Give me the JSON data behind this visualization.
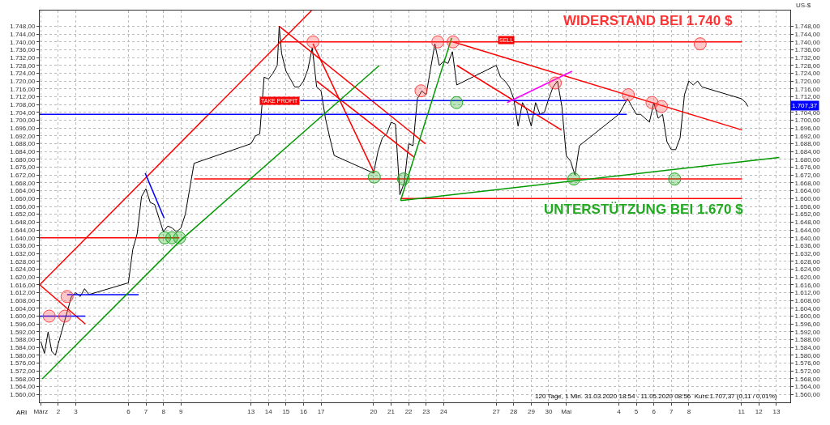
{
  "chart_data": {
    "type": "line",
    "y2label": "US-$",
    "legend": false,
    "grid": true,
    "xlim": [
      "2020-03-31T22:30",
      "2020-05-13T19:00"
    ],
    "ylim": [
      1556,
      1756
    ],
    "y2lim": [
      1556,
      1756
    ],
    "xticks": [
      {
        "value": "2020-04-01",
        "label": "März"
      },
      {
        "value": "2020-04-02",
        "label": "2"
      },
      {
        "value": "2020-04-03",
        "label": "3"
      },
      {
        "value": "2020-04-06",
        "label": "6"
      },
      {
        "value": "2020-04-07",
        "label": "7"
      },
      {
        "value": "2020-04-08",
        "label": "8"
      },
      {
        "value": "2020-04-09",
        "label": "9"
      },
      {
        "value": "2020-04-13",
        "label": "13"
      },
      {
        "value": "2020-04-14",
        "label": "14"
      },
      {
        "value": "2020-04-15",
        "label": "15"
      },
      {
        "value": "2020-04-16",
        "label": "16"
      },
      {
        "value": "2020-04-17",
        "label": "17"
      },
      {
        "value": "2020-04-20",
        "label": "20"
      },
      {
        "value": "2020-04-21",
        "label": "21"
      },
      {
        "value": "2020-04-22",
        "label": "22"
      },
      {
        "value": "2020-04-23",
        "label": "23"
      },
      {
        "value": "2020-04-24",
        "label": "24"
      },
      {
        "value": "2020-04-27",
        "label": "27"
      },
      {
        "value": "2020-04-28",
        "label": "28"
      },
      {
        "value": "2020-04-29",
        "label": "29"
      },
      {
        "value": "2020-04-30",
        "label": "30"
      },
      {
        "value": "2020-05-01",
        "label": "Mai"
      },
      {
        "value": "2020-05-04",
        "label": "4"
      },
      {
        "value": "2020-05-05",
        "label": "5"
      },
      {
        "value": "2020-05-06",
        "label": "6"
      },
      {
        "value": "2020-05-07",
        "label": "7"
      },
      {
        "value": "2020-05-08",
        "label": "8"
      },
      {
        "value": "2020-05-11",
        "label": "11"
      },
      {
        "value": "2020-05-12",
        "label": "12"
      },
      {
        "value": "2020-05-13",
        "label": "13"
      }
    ],
    "yticks": [
      {
        "value": 1560,
        "label": "1.560,00"
      },
      {
        "value": 1564,
        "label": "1.564,00"
      },
      {
        "value": 1568,
        "label": "1.568,00"
      },
      {
        "value": 1572,
        "label": "1.572,00"
      },
      {
        "value": 1576,
        "label": "1.576,00"
      },
      {
        "value": 1580,
        "label": "1.580,00"
      },
      {
        "value": 1584,
        "label": "1.584,00"
      },
      {
        "value": 1588,
        "label": "1.588,00"
      },
      {
        "value": 1592,
        "label": "1.592,00"
      },
      {
        "value": 1596,
        "label": "1.596,00"
      },
      {
        "value": 1600,
        "label": "1.600,00"
      },
      {
        "value": 1604,
        "label": "1.604,00"
      },
      {
        "value": 1608,
        "label": "1.608,00"
      },
      {
        "value": 1612,
        "label": "1.612,00"
      },
      {
        "value": 1616,
        "label": "1.616,00"
      },
      {
        "value": 1620,
        "label": "1.620,00"
      },
      {
        "value": 1624,
        "label": "1.624,00"
      },
      {
        "value": 1628,
        "label": "1.628,00"
      },
      {
        "value": 1632,
        "label": "1.632,00"
      },
      {
        "value": 1636,
        "label": "1.636,00"
      },
      {
        "value": 1640,
        "label": "1.640,00"
      },
      {
        "value": 1644,
        "label": "1.644,00"
      },
      {
        "value": 1648,
        "label": "1.648,00"
      },
      {
        "value": 1652,
        "label": "1.652,00"
      },
      {
        "value": 1656,
        "label": "1.656,00"
      },
      {
        "value": 1660,
        "label": "1.660,00"
      },
      {
        "value": 1664,
        "label": "1.664,00"
      },
      {
        "value": 1668,
        "label": "1.668,00"
      },
      {
        "value": 1672,
        "label": "1.672,00"
      },
      {
        "value": 1676,
        "label": "1.676,00"
      },
      {
        "value": 1680,
        "label": "1.680,00"
      },
      {
        "value": 1684,
        "label": "1.684,00"
      },
      {
        "value": 1688,
        "label": "1.688,00"
      },
      {
        "value": 1692,
        "label": "1.692,00"
      },
      {
        "value": 1696,
        "label": "1.696,00"
      },
      {
        "value": 1700,
        "label": "1.700,00"
      },
      {
        "value": 1704,
        "label": "1.704,00"
      },
      {
        "value": 1708,
        "label": "1.708,00"
      },
      {
        "value": 1712,
        "label": "1.712,00"
      },
      {
        "value": 1716,
        "label": "1.716,00"
      },
      {
        "value": 1720,
        "label": "1.720,00"
      },
      {
        "value": 1724,
        "label": "1.724,00"
      },
      {
        "value": 1728,
        "label": "1.728,00"
      },
      {
        "value": 1732,
        "label": "1.732,00"
      },
      {
        "value": 1736,
        "label": "1.736,00"
      },
      {
        "value": 1740,
        "label": "1.740,00"
      },
      {
        "value": 1744,
        "label": "1.744,00"
      },
      {
        "value": 1748,
        "label": "1.748,00"
      }
    ],
    "y2ticks": [
      {
        "value": 1560,
        "label": "1.560,00"
      },
      {
        "value": 1564,
        "label": "1.564,00"
      },
      {
        "value": 1568,
        "label": "1.568,00"
      },
      {
        "value": 1572,
        "label": "1.572,00"
      },
      {
        "value": 1576,
        "label": "1.576,00"
      },
      {
        "value": 1580,
        "label": "1.580,00"
      },
      {
        "value": 1584,
        "label": "1.584,00"
      },
      {
        "value": 1588,
        "label": "1.588,00"
      },
      {
        "value": 1592,
        "label": "1.592,00"
      },
      {
        "value": 1596,
        "label": "1.596,00"
      },
      {
        "value": 1600,
        "label": "1.600,00"
      },
      {
        "value": 1604,
        "label": "1.604,00"
      },
      {
        "value": 1608,
        "label": "1.608,00"
      },
      {
        "value": 1612,
        "label": "1.612,00"
      },
      {
        "value": 1616,
        "label": "1.616,00"
      },
      {
        "value": 1620,
        "label": "1.620,00"
      },
      {
        "value": 1624,
        "label": "1.624,00"
      },
      {
        "value": 1628,
        "label": "1.628,00"
      },
      {
        "value": 1632,
        "label": "1.632,00"
      },
      {
        "value": 1636,
        "label": "1.636,00"
      },
      {
        "value": 1640,
        "label": "1.640,00"
      },
      {
        "value": 1644,
        "label": "1.644,00"
      },
      {
        "value": 1648,
        "label": "1.648,00"
      },
      {
        "value": 1652,
        "label": "1.652,00"
      },
      {
        "value": 1656,
        "label": "1.656,00"
      },
      {
        "value": 1660,
        "label": "1.660,00"
      },
      {
        "value": 1664,
        "label": "1.664,00"
      },
      {
        "value": 1668,
        "label": "1.668,00"
      },
      {
        "value": 1672,
        "label": "1.672,00"
      },
      {
        "value": 1676,
        "label": "1.676,00"
      },
      {
        "value": 1680,
        "label": "1.680,00"
      },
      {
        "value": 1684,
        "label": "1.684,00"
      },
      {
        "value": 1688,
        "label": "1.688,00"
      },
      {
        "value": 1692,
        "label": "1.692,00"
      },
      {
        "value": 1696,
        "label": "1.696,00"
      },
      {
        "value": 1700,
        "label": "1.700,00"
      },
      {
        "value": 1704,
        "label": "1.704,00"
      },
      {
        "value": 1708,
        "label": null
      },
      {
        "value": 1712,
        "label": "1.712,00"
      },
      {
        "value": 1716,
        "label": "1.716,00"
      },
      {
        "value": 1720,
        "label": "1.720,00"
      },
      {
        "value": 1724,
        "label": "1.724,00"
      },
      {
        "value": 1728,
        "label": "1.728,00"
      },
      {
        "value": 1732,
        "label": "1.732,00"
      },
      {
        "value": 1736,
        "label": "1.736,00"
      },
      {
        "value": 1740,
        "label": "1.740,00"
      },
      {
        "value": 1744,
        "label": "1.744,00"
      },
      {
        "value": 1748,
        "label": "1.748,00"
      }
    ],
    "series": [
      {
        "color": "#000000",
        "x": [
          "2020-04-01T00:00",
          "2020-04-01T05:00",
          "2020-04-01T10:00",
          "2020-04-01T15:00",
          "2020-04-01T20:00",
          "2020-04-02T00:00",
          "2020-04-02T06:00",
          "2020-04-02T12:00",
          "2020-04-02T18:00",
          "2020-04-03T00:00",
          "2020-04-03T06:00",
          "2020-04-03T12:00",
          "2020-04-03T18:00",
          "2020-04-06T00:00",
          "2020-04-06T06:00",
          "2020-04-06T12:00",
          "2020-04-06T18:00",
          "2020-04-07T00:00",
          "2020-04-07T06:00",
          "2020-04-07T12:00",
          "2020-04-07T18:00",
          "2020-04-08T00:00",
          "2020-04-08T06:00",
          "2020-04-08T12:00",
          "2020-04-08T18:00",
          "2020-04-09T00:00",
          "2020-04-09T06:00",
          "2020-04-09T12:00",
          "2020-04-09T18:00",
          "2020-04-13T00:00",
          "2020-04-13T06:00",
          "2020-04-13T12:00",
          "2020-04-13T18:00",
          "2020-04-14T00:00",
          "2020-04-14T06:00",
          "2020-04-14T12:00",
          "2020-04-14T14:40",
          "2020-04-14T18:00",
          "2020-04-15T00:00",
          "2020-04-15T06:00",
          "2020-04-15T12:00",
          "2020-04-15T18:00",
          "2020-04-16T00:00",
          "2020-04-16T06:00",
          "2020-04-16T12:00",
          "2020-04-16T18:00",
          "2020-04-17T00:00",
          "2020-04-17T06:00",
          "2020-04-17T12:00",
          "2020-04-17T18:00",
          "2020-04-20T00:00",
          "2020-04-20T06:00",
          "2020-04-20T12:00",
          "2020-04-20T18:00",
          "2020-04-21T00:00",
          "2020-04-21T06:00",
          "2020-04-21T12:00",
          "2020-04-21T18:00",
          "2020-04-22T00:00",
          "2020-04-22T06:00",
          "2020-04-22T12:00",
          "2020-04-22T18:00",
          "2020-04-23T00:00",
          "2020-04-23T06:00",
          "2020-04-23T12:00",
          "2020-04-23T18:00",
          "2020-04-24T00:00",
          "2020-04-24T06:00",
          "2020-04-24T12:00",
          "2020-04-24T18:00",
          "2020-04-27T00:00",
          "2020-04-27T06:00",
          "2020-04-27T12:00",
          "2020-04-27T18:00",
          "2020-04-28T00:00",
          "2020-04-28T06:00",
          "2020-04-28T12:00",
          "2020-04-28T18:00",
          "2020-04-29T00:00",
          "2020-04-29T06:00",
          "2020-04-29T12:00",
          "2020-04-29T18:00",
          "2020-04-30T00:00",
          "2020-04-30T06:00",
          "2020-04-30T12:00",
          "2020-04-30T18:00",
          "2020-05-01T00:00",
          "2020-05-01T06:00",
          "2020-05-01T12:00",
          "2020-05-01T18:00",
          "2020-05-04T00:00",
          "2020-05-04T06:00",
          "2020-05-04T12:00",
          "2020-05-04T18:00",
          "2020-05-05T00:00",
          "2020-05-05T06:00",
          "2020-05-05T12:00",
          "2020-05-05T18:00",
          "2020-05-06T00:00",
          "2020-05-06T06:00",
          "2020-05-06T12:00",
          "2020-05-06T18:00",
          "2020-05-07T00:00",
          "2020-05-07T06:00",
          "2020-05-07T12:00",
          "2020-05-07T18:00",
          "2020-05-08T00:00",
          "2020-05-08T06:00",
          "2020-05-08T12:00",
          "2020-05-08T18:00",
          "2020-05-11T00:00",
          "2020-05-11T06:00",
          "2020-05-11T09:00"
        ],
        "values": [
          1587,
          1581,
          1592,
          1582,
          1580,
          1586,
          1594,
          1602,
          1610,
          1612,
          1610,
          1614,
          1611,
          1617,
          1634,
          1642,
          1661,
          1665,
          1658,
          1657,
          1650,
          1643,
          1646,
          1645,
          1643,
          1645,
          1652,
          1665,
          1678,
          1688,
          1692,
          1693,
          1722,
          1721,
          1724,
          1728,
          1748,
          1734,
          1725,
          1721,
          1717,
          1717,
          1720,
          1726,
          1737,
          1717,
          1715,
          1701,
          1691,
          1682,
          1673,
          1684,
          1691,
          1693,
          1699,
          1698,
          1662,
          1668,
          1688,
          1687,
          1711,
          1715,
          1713,
          1726,
          1739,
          1728,
          1730,
          1729,
          1735,
          1718,
          1728,
          1722,
          1720,
          1717,
          1711,
          1697,
          1709,
          1705,
          1697,
          1709,
          1703,
          1704,
          1711,
          1717,
          1720,
          1707,
          1682,
          1679,
          1672,
          1687,
          1703,
          1707,
          1711,
          1707,
          1703,
          1703,
          1701,
          1699,
          1709,
          1701,
          1703,
          1689,
          1685,
          1685,
          1691,
          1713,
          1720,
          1718,
          1720,
          1717,
          1711,
          1709,
          1707
        ]
      },
      {
        "color": "#ff0000",
        "x": [
          "2020-04-14T14:40",
          "2020-05-11T01:00"
        ],
        "values": [
          1740,
          1740
        ]
      },
      {
        "color": "#ff0000",
        "x": [
          "2020-04-09T18:00",
          "2020-05-11T01:00"
        ],
        "values": [
          1670,
          1670
        ]
      },
      {
        "color": "#ff0000",
        "x": [
          "2020-04-21T13:00",
          "2020-05-11T01:00"
        ],
        "values": [
          1660,
          1660
        ]
      },
      {
        "color": "#ff0000",
        "x": [
          "2020-03-31T22:30",
          "2020-04-08T22:00"
        ],
        "values": [
          1640,
          1640
        ]
      },
      {
        "color": "#ff0000",
        "x": [
          "2020-03-31T22:30",
          "2020-04-16T11:00"
        ],
        "values": [
          1616,
          1756
        ]
      },
      {
        "color": "#ff0000",
        "x": [
          "2020-03-31T22:30",
          "2020-04-03T13:00"
        ],
        "values": [
          1616,
          1596
        ]
      },
      {
        "color": "#ff0000",
        "x": [
          "2020-04-14T14:40",
          "2020-04-22T23:00"
        ],
        "values": [
          1748,
          1688
        ]
      },
      {
        "color": "#ff0000",
        "x": [
          "2020-04-16T13:00",
          "2020-04-20T01:00"
        ],
        "values": [
          1739,
          1673
        ]
      },
      {
        "color": "#ff0000",
        "x": [
          "2020-04-16T18:00",
          "2020-04-22T08:00"
        ],
        "values": [
          1720,
          1681
        ]
      },
      {
        "color": "#ff0000",
        "x": [
          "2020-04-24T13:00",
          "2020-05-11T01:00"
        ],
        "values": [
          1740,
          1695
        ]
      },
      {
        "color": "#ff0000",
        "x": [
          "2020-04-24T18:00",
          "2020-04-30T17:30"
        ],
        "values": [
          1728,
          1695
        ]
      },
      {
        "color": "#0000ff",
        "x": [
          "2020-03-31T22:30",
          "2020-04-03T13:00"
        ],
        "values": [
          1600,
          1600
        ]
      },
      {
        "color": "#0000ff",
        "x": [
          "2020-04-02T12:00",
          "2020-04-06T14:00"
        ],
        "values": [
          1611,
          1611
        ]
      },
      {
        "color": "#0000ff",
        "x": [
          "2020-03-31T22:30",
          "2020-05-04T11:00"
        ],
        "values": [
          1703,
          1703
        ]
      },
      {
        "color": "#0000ff",
        "x": [
          "2020-04-15T19:30",
          "2020-05-04T11:00"
        ],
        "values": [
          1710,
          1710
        ]
      },
      {
        "color": "#0000ff",
        "x": [
          "2020-04-06T23:00",
          "2020-04-08T01:00"
        ],
        "values": [
          1673,
          1650
        ]
      },
      {
        "color": "#009900",
        "x": [
          "2020-04-01T02:00",
          "2020-04-09T00:30",
          "2020-04-20T08:00"
        ],
        "values": [
          1568,
          1639,
          1728
        ]
      },
      {
        "color": "#009900",
        "x": [
          "2020-04-21T13:00",
          "2020-05-13T04:00"
        ],
        "values": [
          1659,
          1681
        ]
      },
      {
        "color": "#009900",
        "x": [
          "2020-04-21T13:00",
          "2020-04-24T11:00"
        ],
        "values": [
          1659,
          1742
        ]
      },
      {
        "color": "#ff00ff",
        "x": [
          "2020-04-27T15:00",
          "2020-05-01T08:00"
        ],
        "values": [
          1709,
          1725
        ]
      },
      {
        "type": "scatter",
        "marker": "circle",
        "color": "#ff4444",
        "x": [
          "2020-04-01T11:30",
          "2020-04-02T09:00",
          "2020-04-02T12:00",
          "2020-04-16T13:00",
          "2020-04-22T17:00",
          "2020-04-23T16:00",
          "2020-04-24T13:00",
          "2020-05-08T15:30",
          "2020-04-30T09:00",
          "2020-05-04T13:00",
          "2020-05-05T21:30",
          "2020-05-06T10:30"
        ],
        "values": [
          1600,
          1600,
          1610,
          1740,
          1715,
          1740,
          1740,
          1739,
          1719,
          1713,
          1709,
          1707
        ]
      },
      {
        "type": "scatter",
        "marker": "circle",
        "color": "#22aa22",
        "x": [
          "2020-04-08T01:40",
          "2020-04-08T11:30",
          "2020-04-08T22:00",
          "2020-04-20T01:00",
          "2020-04-21T17:00",
          "2020-04-24T17:45",
          "2020-05-01T10:20",
          "2020-05-07T04:30"
        ],
        "values": [
          1640,
          1640,
          1640,
          1671,
          1670,
          1709,
          1670,
          1670
        ]
      }
    ],
    "annotations": [
      "WIDERSTAND BEI 1.740 $",
      "UNTERSTÜTZUNG BEI 1.670 $",
      {
        "text": "TAKE PROFIT",
        "x": "2020-04-15T19:30",
        "y": 1710
      },
      {
        "text": "SELL",
        "x": "2020-04-27T02:00",
        "y": 1741
      },
      "1.707,37",
      "120 Tage, 1 Min. 31.03.2020 18:54 - 11.05.2020 08:56  Kurs:1.707,37 (0,11 / 0,01%)",
      "ARI"
    ]
  }
}
